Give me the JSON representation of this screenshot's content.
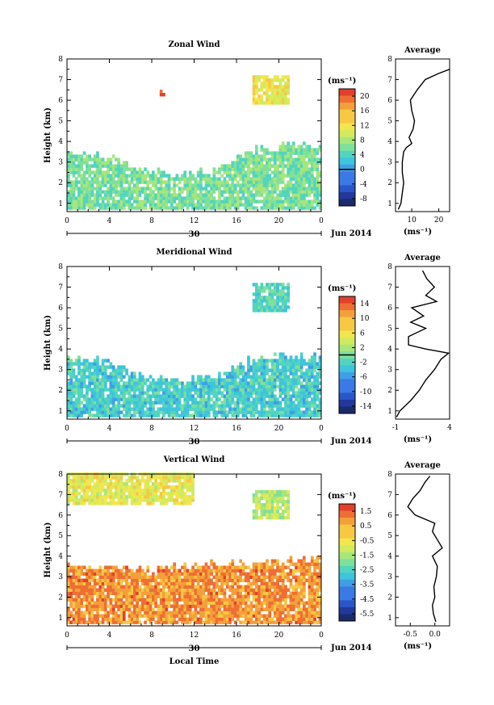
{
  "chart_data": [
    {
      "type": "heatmap",
      "title": "Zonal Wind",
      "xlabel": "",
      "ylabel": "Height (km)",
      "x_ticks": [
        "0",
        "4",
        "8",
        "12",
        "16",
        "20",
        "0"
      ],
      "y_ticks": [
        "1",
        "2",
        "3",
        "4",
        "5",
        "6",
        "7",
        "8"
      ],
      "xlim": [
        0,
        24
      ],
      "ylim": [
        0.6,
        8
      ],
      "date_day": "30",
      "date_label": "Jun 2014",
      "colorbar": {
        "unit": "(ms⁻¹)",
        "ticks": [
          "20",
          "16",
          "12",
          "8",
          "4",
          "0",
          "-4",
          "-8"
        ],
        "range": [
          -10,
          22
        ],
        "zero_line": 0
      },
      "data_regions": [
        {
          "desc": "low cloud",
          "x": [
            0,
            24
          ],
          "top_km": [
            3.4,
            3.2,
            2.6,
            2.3,
            2.5,
            3.5,
            3.7,
            3.7
          ],
          "base_km": 0.7,
          "value_ms": 6
        },
        {
          "desc": "high layer",
          "x": [
            17.5,
            21
          ],
          "y": [
            5.8,
            7.2
          ],
          "value_ms": 12
        },
        {
          "desc": "isolated",
          "x": [
            8.8,
            9.2
          ],
          "y": [
            6.2,
            6.5
          ],
          "value_ms": 20
        }
      ],
      "average_profile": {
        "title": "Average",
        "xlabel": "(ms⁻¹)",
        "x_ticks": [
          "10",
          "20"
        ],
        "xlim": [
          4,
          24
        ],
        "height_km": [
          0.7,
          1.0,
          1.5,
          2.0,
          2.5,
          3.0,
          3.5,
          3.7,
          3.9,
          4.2,
          4.6,
          5.0,
          5.5,
          6.0,
          6.5,
          7.0,
          7.3,
          7.5
        ],
        "value_ms": [
          5.0,
          6.0,
          6.5,
          7.0,
          6.5,
          6.5,
          7.0,
          8.0,
          10.0,
          9.0,
          10.5,
          11.0,
          10.0,
          9.5,
          12.0,
          15.0,
          20.0,
          24.0
        ]
      }
    },
    {
      "type": "heatmap",
      "title": "Meridional Wind",
      "xlabel": "",
      "ylabel": "Height (km)",
      "x_ticks": [
        "0",
        "4",
        "8",
        "12",
        "16",
        "20",
        "0"
      ],
      "y_ticks": [
        "1",
        "2",
        "3",
        "4",
        "5",
        "6",
        "7",
        "8"
      ],
      "xlim": [
        0,
        24
      ],
      "ylim": [
        0.6,
        8
      ],
      "date_day": "30",
      "date_label": "Jun 2014",
      "colorbar": {
        "unit": "(ms⁻¹)",
        "ticks": [
          "14",
          "10",
          "6",
          "2",
          "-2",
          "-6",
          "-10",
          "-14"
        ],
        "range": [
          -16,
          16
        ],
        "zero_line": 0
      },
      "data_regions": [
        {
          "desc": "low cloud",
          "x": [
            0,
            24
          ],
          "top_km": [
            3.5,
            3.3,
            2.7,
            2.4,
            2.6,
            3.4,
            3.6,
            3.6
          ],
          "base_km": 0.7,
          "value_ms": -3
        },
        {
          "desc": "high layer",
          "x": [
            17.5,
            21
          ],
          "y": [
            5.8,
            7.2
          ],
          "value_ms": -2
        }
      ],
      "average_profile": {
        "title": "Average",
        "xlabel": "(ms⁻¹)",
        "x_ticks": [
          "-1",
          "4"
        ],
        "xlim": [
          -1,
          4
        ],
        "height_km": [
          0.7,
          1.0,
          1.5,
          2.0,
          2.5,
          3.0,
          3.5,
          3.8,
          4.0,
          4.2,
          4.6,
          5.0,
          5.3,
          5.6,
          6.0,
          6.3,
          6.6,
          7.0,
          7.4,
          7.8
        ],
        "value_ms": [
          -0.9,
          -0.6,
          0.4,
          1.2,
          1.8,
          2.6,
          3.2,
          3.9,
          1.8,
          0.2,
          0.2,
          1.8,
          0.4,
          1.6,
          0.5,
          2.8,
          1.8,
          2.6,
          1.9,
          1.5
        ]
      }
    },
    {
      "type": "heatmap",
      "title": "Vertical Wind",
      "xlabel": "Local Time",
      "ylabel": "Height (km)",
      "x_ticks": [
        "0",
        "4",
        "8",
        "12",
        "16",
        "20",
        "0"
      ],
      "y_ticks": [
        "1",
        "2",
        "3",
        "4",
        "5",
        "6",
        "7",
        "8"
      ],
      "xlim": [
        0,
        24
      ],
      "ylim": [
        0.6,
        8
      ],
      "date_day": "30",
      "date_label": "Jun 2014",
      "colorbar": {
        "unit": "(ms⁻¹)",
        "ticks": [
          "1.5",
          "0.5",
          "-0.5",
          "-1.5",
          "-2.5",
          "-3.5",
          "-4.5",
          "-5.5"
        ],
        "range": [
          -6,
          2
        ],
        "zero_line": null
      },
      "data_regions": [
        {
          "desc": "low cloud",
          "x": [
            0,
            24
          ],
          "top_km": [
            3.5,
            3.4,
            3.3,
            3.4,
            3.6,
            3.6,
            3.7,
            3.8
          ],
          "base_km": 0.7,
          "value_ms": 0.8
        },
        {
          "desc": "high layer",
          "x": [
            0,
            12
          ],
          "y": [
            6.5,
            8.0
          ],
          "value_ms": -0.6
        },
        {
          "desc": "high layer",
          "x": [
            17.5,
            21
          ],
          "y": [
            5.8,
            7.2
          ],
          "value_ms": -1.2
        }
      ],
      "average_profile": {
        "title": "Average",
        "xlabel": "(ms⁻¹)",
        "x_ticks": [
          "-0.5",
          "0.0"
        ],
        "xlim": [
          -0.8,
          0.3
        ],
        "height_km": [
          0.8,
          1.2,
          1.6,
          2.0,
          2.5,
          3.0,
          3.5,
          4.0,
          4.4,
          4.8,
          5.2,
          5.6,
          6.0,
          6.4,
          6.8,
          7.2,
          7.6,
          7.9
        ],
        "value_ms": [
          0.02,
          -0.03,
          -0.05,
          0.0,
          -0.02,
          0.03,
          0.05,
          -0.05,
          0.15,
          0.05,
          -0.05,
          0.0,
          -0.4,
          -0.55,
          -0.45,
          -0.3,
          -0.2,
          -0.1
        ]
      }
    }
  ]
}
